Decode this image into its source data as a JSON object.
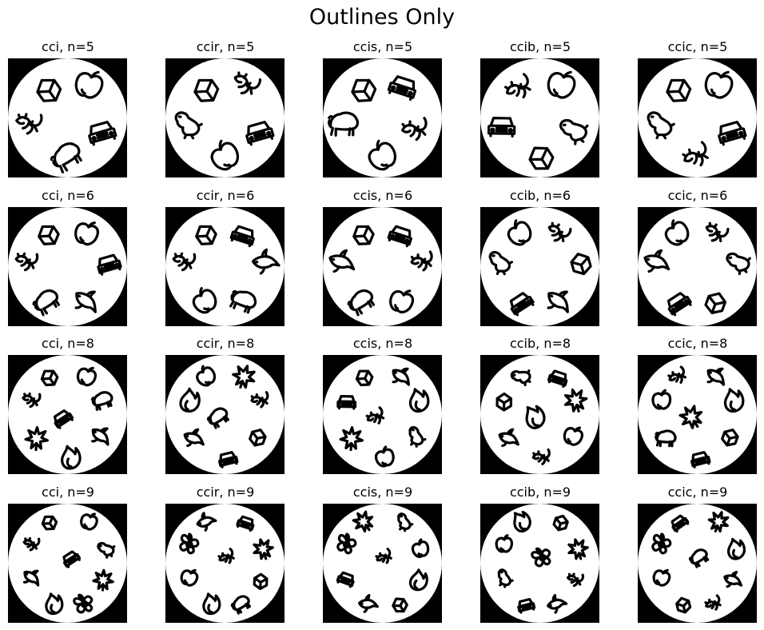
{
  "title": "Outlines Only",
  "columns": [
    "cci",
    "ccir",
    "ccis",
    "ccib",
    "ccic"
  ],
  "rows": [
    {
      "n": "n=5",
      "labels": [
        "cci, n=5",
        "ccir, n=5",
        "ccis, n=5",
        "ccib, n=5",
        "ccic, n=5"
      ],
      "panels": [
        [
          "cube",
          "apple",
          "lizard",
          "car",
          "bison"
        ],
        [
          "cube",
          "lizard",
          "dog",
          "car",
          "apple"
        ],
        [
          "cube",
          "car",
          "bison",
          "lizard",
          "apple"
        ],
        [
          "lizard",
          "apple",
          "car",
          "dog",
          "cube"
        ],
        [
          "cube",
          "apple",
          "dog",
          "car",
          "lizard"
        ]
      ]
    },
    {
      "n": "n=6",
      "labels": [
        "cci, n=6",
        "ccir, n=6",
        "ccis, n=6",
        "ccib, n=6",
        "ccic, n=6"
      ],
      "panels": [
        [
          "cube",
          "apple",
          "lizard",
          "car",
          "bison",
          "dolphin"
        ],
        [
          "cube",
          "car",
          "lizard",
          "dolphin",
          "apple",
          "bison"
        ],
        [
          "cube",
          "car",
          "dolphin",
          "lizard",
          "bison",
          "apple"
        ],
        [
          "apple",
          "lizard",
          "dog",
          "cube",
          "car",
          "dolphin"
        ],
        [
          "apple",
          "lizard",
          "dolphin",
          "dog",
          "car",
          "cube"
        ]
      ]
    },
    {
      "n": "n=8",
      "labels": [
        "cci, n=8",
        "ccir, n=8",
        "ccis, n=8",
        "ccib, n=8",
        "ccic, n=8"
      ],
      "panels": [
        [
          "cube",
          "apple",
          "lizard",
          "bison",
          "car",
          "dolphin",
          "leaf",
          "flame"
        ],
        [
          "apple",
          "leaf",
          "flame",
          "lizard",
          "bison",
          "cube",
          "dolphin",
          "car"
        ],
        [
          "cube",
          "dolphin",
          "car",
          "flame",
          "lizard",
          "dog",
          "leaf",
          "apple"
        ],
        [
          "dog",
          "car",
          "cube",
          "leaf",
          "flame",
          "apple",
          "dolphin",
          "lizard"
        ],
        [
          "lizard",
          "dolphin",
          "apple",
          "flame",
          "leaf",
          "cube",
          "bison",
          "car"
        ]
      ]
    },
    {
      "n": "n=9",
      "labels": [
        "cci, n=9",
        "ccir, n=9",
        "ccis, n=9",
        "ccib, n=9",
        "ccic, n=9"
      ],
      "panels": [
        [
          "cube",
          "apple",
          "lizard",
          "dog",
          "car",
          "dolphin",
          "leaf",
          "flame",
          "flower"
        ],
        [
          "dolphin",
          "car",
          "flower",
          "leaf",
          "lizard",
          "apple",
          "cube",
          "flame",
          "bison"
        ],
        [
          "leaf",
          "dog",
          "flower",
          "apple",
          "lizard",
          "car",
          "flame",
          "dolphin",
          "cube"
        ],
        [
          "flame",
          "cube",
          "apple",
          "leaf",
          "flower",
          "dog",
          "lizard",
          "car",
          "dolphin"
        ],
        [
          "car",
          "leaf",
          "flower",
          "flame",
          "bison",
          "apple",
          "dolphin",
          "cube",
          "lizard"
        ]
      ]
    }
  ]
}
